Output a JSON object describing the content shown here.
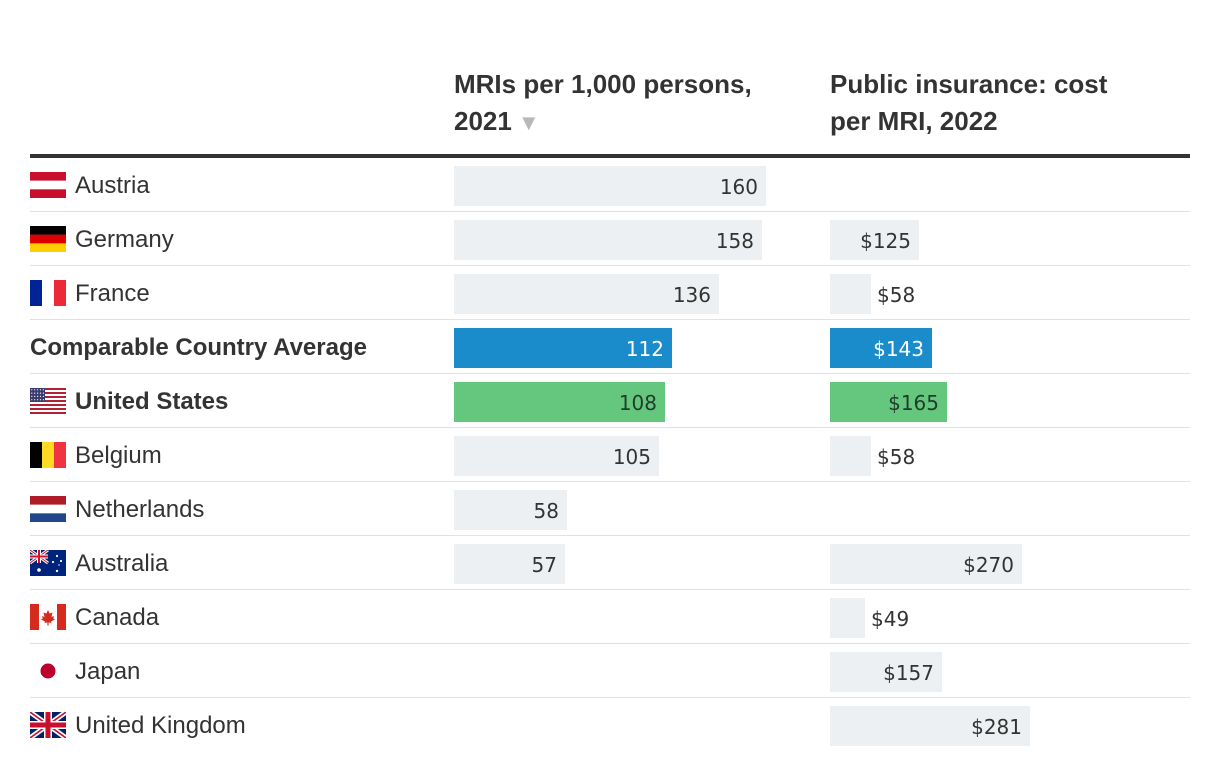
{
  "colors": {
    "bar": "#edf0f2",
    "average": "#1a8ccc",
    "us": "#65c77d",
    "rule": "#333333",
    "separator": "#e1e1e1"
  },
  "chart_data": {
    "type": "table",
    "columns": [
      {
        "key": "mri",
        "title": "MRIs per 1,000 persons, 2021",
        "sort_indicator": "▼",
        "max": 160
      },
      {
        "key": "cost",
        "title": "Public insurance: cost per MRI, 2022",
        "max": 281,
        "prefix": "$"
      }
    ],
    "rows": [
      {
        "name": "Austria",
        "flag": "austria-flag",
        "bold": false,
        "mri": 160,
        "cost": null
      },
      {
        "name": "Germany",
        "flag": "germany-flag",
        "bold": false,
        "mri": 158,
        "cost": 125
      },
      {
        "name": "France",
        "flag": "france-flag",
        "bold": false,
        "mri": 136,
        "cost": 58
      },
      {
        "name": "Comparable Country Average",
        "flag": null,
        "bold": true,
        "highlight": "average",
        "mri": 112,
        "cost": 143
      },
      {
        "name": "United States",
        "flag": "us-flag",
        "bold": true,
        "highlight": "us",
        "mri": 108,
        "cost": 165
      },
      {
        "name": "Belgium",
        "flag": "belgium-flag",
        "bold": false,
        "mri": 105,
        "cost": 58
      },
      {
        "name": "Netherlands",
        "flag": "netherlands-flag",
        "bold": false,
        "mri": 58,
        "cost": null
      },
      {
        "name": "Australia",
        "flag": "australia-flag",
        "bold": false,
        "mri": 57,
        "cost": 270
      },
      {
        "name": "Canada",
        "flag": "canada-flag",
        "bold": false,
        "mri": null,
        "cost": 49
      },
      {
        "name": "Japan",
        "flag": "japan-flag",
        "bold": false,
        "mri": null,
        "cost": 157
      },
      {
        "name": "United Kingdom",
        "flag": "uk-flag",
        "bold": false,
        "mri": null,
        "cost": 281
      }
    ]
  }
}
